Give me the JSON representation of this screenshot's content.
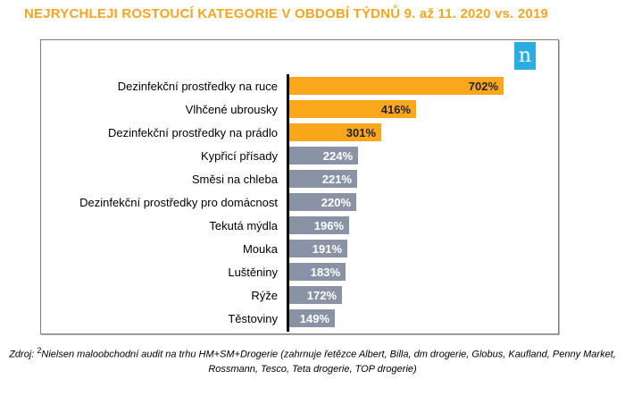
{
  "title": "NEJRYCHLEJI ROSTOUCÍ KATEGORIE V OBDOBÍ TÝDNŮ 9. až 11. 2020 vs. 2019",
  "logo": {
    "letter": "n",
    "background": "#2BACE2"
  },
  "chart_data": {
    "type": "bar",
    "orientation": "horizontal",
    "title": "NEJRYCHLEJI ROSTOUCÍ KATEGORIE V OBDOBÍ TÝDNŮ 9. až 11. 2020 vs. 2019",
    "categories": [
      "Dezinfekční prostředky na ruce",
      "Vlhčené ubrousky",
      "Dezinfekční prostředky na prádlo",
      "Kypřicí přísady",
      "Směsi na chleba",
      "Dezinfekční prostředky pro domácnost",
      "Tekutá mýdla",
      "Mouka",
      "Luštěniny",
      "Rýže",
      "Těstoviny"
    ],
    "values": [
      702,
      416,
      301,
      224,
      221,
      220,
      196,
      191,
      183,
      172,
      149
    ],
    "value_labels": [
      "702%",
      "416%",
      "301%",
      "224%",
      "221%",
      "220%",
      "196%",
      "191%",
      "183%",
      "172%",
      "149%"
    ],
    "unit": "%",
    "xlim": [
      0,
      720
    ],
    "grid": false,
    "legend": false,
    "highlight_first_n": 3,
    "colors": {
      "highlight": "#FBA71B",
      "default": "#8A93A6",
      "axis": "#000000",
      "value_text_on_highlight": "#1E2430",
      "value_text_on_default": "#FFFFFF"
    }
  },
  "source": {
    "label": "Zdroj:",
    "superscript": "2",
    "text": "Nielsen maloobchodní audit na trhu HM+SM+Drogerie (zahrnuje řetězce Albert, Billa, dm drogerie, Globus, Kaufland, Penny Market, Rossmann, Tesco, Teta drogerie, TOP drogerie)"
  },
  "colors": {
    "title": "#F9A51B",
    "chart_border": "#7F7F7F"
  }
}
